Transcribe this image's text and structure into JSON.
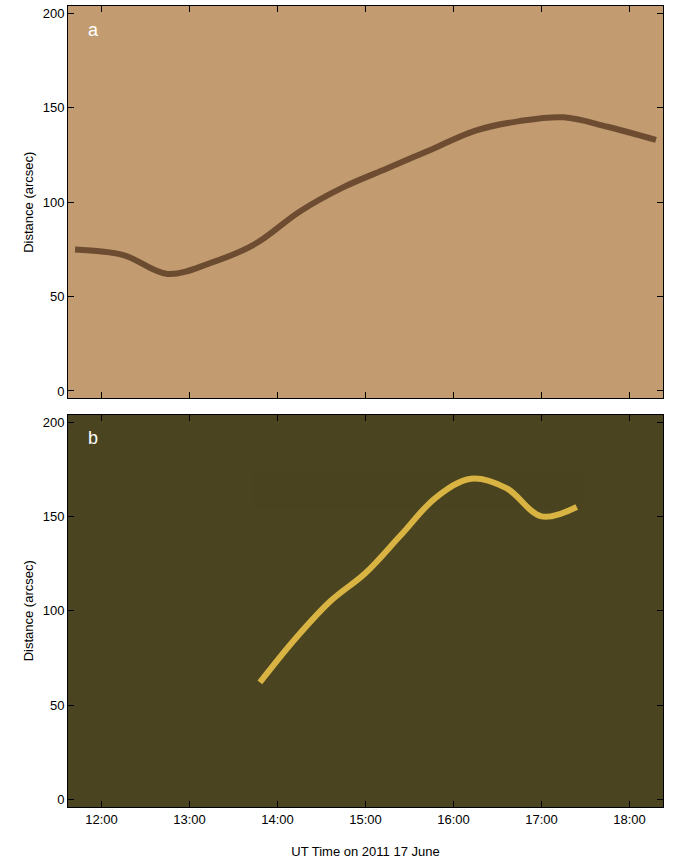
{
  "chart_data": [
    {
      "type": "line",
      "title": "a",
      "ylabel": "Distance (arcsec)",
      "xlim": [
        11.62,
        18.38
      ],
      "xticks": [
        {
          "value": 12,
          "label": "12:00"
        },
        {
          "value": 13,
          "label": "13:00"
        },
        {
          "value": 14,
          "label": "14:00"
        },
        {
          "value": 15,
          "label": "15:00"
        },
        {
          "value": 16,
          "label": "16:00"
        },
        {
          "value": 17,
          "label": "17:00"
        },
        {
          "value": 18,
          "label": "18:00"
        }
      ],
      "ylim": [
        -4,
        204
      ],
      "yticks": [
        0,
        50,
        100,
        150,
        200
      ],
      "tick_labels": "y",
      "series": [
        {
          "color": "#5e3f26",
          "x": [
            11.7,
            12.25,
            12.75,
            13.25,
            13.75,
            14.25,
            14.75,
            15.25,
            15.75,
            16.25,
            16.75,
            17.25,
            17.75,
            18.3
          ],
          "values": [
            75,
            72,
            62,
            68,
            78,
            95,
            108,
            118,
            128,
            138,
            143,
            145,
            140,
            133
          ]
        }
      ]
    },
    {
      "type": "line",
      "title": "b",
      "xlabel": "UT Time on 2011 17 June",
      "ylabel": "Distance (arcsec)",
      "xlim": [
        11.62,
        18.38
      ],
      "xticks": [
        {
          "value": 12,
          "label": "12:00"
        },
        {
          "value": 13,
          "label": "13:00"
        },
        {
          "value": 14,
          "label": "14:00"
        },
        {
          "value": 15,
          "label": "15:00"
        },
        {
          "value": 16,
          "label": "16:00"
        },
        {
          "value": 17,
          "label": "17:00"
        },
        {
          "value": 18,
          "label": "18:00"
        }
      ],
      "ylim": [
        -4,
        204
      ],
      "yticks": [
        0,
        50,
        100,
        150,
        200
      ],
      "tick_labels": true,
      "series": [
        {
          "color": "#f2c84a",
          "x": [
            13.8,
            14.2,
            14.6,
            15.0,
            15.4,
            15.8,
            16.2,
            16.6,
            17.0,
            17.4
          ],
          "values": [
            62,
            85,
            105,
            120,
            140,
            160,
            170,
            165,
            150,
            155
          ]
        }
      ]
    }
  ]
}
